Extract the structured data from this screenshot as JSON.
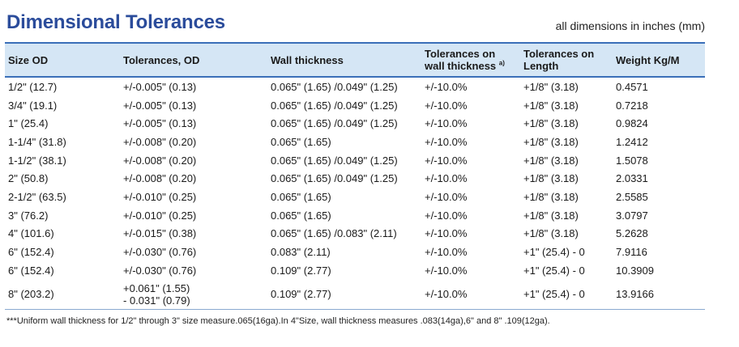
{
  "title": "Dimensional Tolerances",
  "units_note": "all dimensions in inches (mm)",
  "columns": {
    "size_od": "Size OD",
    "tol_od": "Tolerances, OD",
    "wall": "Wall thickness",
    "tol_wall_line1": "Tolerances on",
    "tol_wall_line2": "wall thickness",
    "tol_wall_sup": "a)",
    "tol_len_line1": "Tolerances on",
    "tol_len_line2": "Length",
    "weight": "Weight Kg/M"
  },
  "rows": [
    {
      "size": "1/2\" (12.7)",
      "tol_od": "+/-0.005\" (0.13)",
      "wall": "0.065\" (1.65) /0.049\" (1.25)",
      "tol_wall": "+/-10.0%",
      "tol_len": "+1/8\" (3.18)",
      "weight": "0.4571"
    },
    {
      "size": "3/4\" (19.1)",
      "tol_od": "+/-0.005\" (0.13)",
      "wall": "0.065\" (1.65) /0.049\" (1.25)",
      "tol_wall": "+/-10.0%",
      "tol_len": "+1/8\" (3.18)",
      "weight": "0.7218"
    },
    {
      "size": "1\" (25.4)",
      "tol_od": "+/-0.005\" (0.13)",
      "wall": "0.065\" (1.65) /0.049\" (1.25)",
      "tol_wall": "+/-10.0%",
      "tol_len": "+1/8\" (3.18)",
      "weight": "0.9824"
    },
    {
      "size": "1-1/4\" (31.8)",
      "tol_od": "+/-0.008\" (0.20)",
      "wall": "0.065\" (1.65)",
      "tol_wall": "+/-10.0%",
      "tol_len": "+1/8\" (3.18)",
      "weight": "1.2412"
    },
    {
      "size": "1-1/2\" (38.1)",
      "tol_od": "+/-0.008\" (0.20)",
      "wall": "0.065\" (1.65) /0.049\" (1.25)",
      "tol_wall": "+/-10.0%",
      "tol_len": "+1/8\" (3.18)",
      "weight": "1.5078"
    },
    {
      "size": "2\" (50.8)",
      "tol_od": "+/-0.008\" (0.20)",
      "wall": "0.065\" (1.65) /0.049\" (1.25)",
      "tol_wall": "+/-10.0%",
      "tol_len": "+1/8\" (3.18)",
      "weight": "2.0331"
    },
    {
      "size": "2-1/2\" (63.5)",
      "tol_od": "+/-0.010\" (0.25)",
      "wall": "0.065\" (1.65)",
      "tol_wall": "+/-10.0%",
      "tol_len": "+1/8\" (3.18)",
      "weight": "2.5585"
    },
    {
      "size": "3\" (76.2)",
      "tol_od": "+/-0.010\" (0.25)",
      "wall": "0.065\" (1.65)",
      "tol_wall": "+/-10.0%",
      "tol_len": "+1/8\" (3.18)",
      "weight": "3.0797"
    },
    {
      "size": "4\" (101.6)",
      "tol_od": "+/-0.015\" (0.38)",
      "wall": "0.065\" (1.65) /0.083\" (2.11)",
      "tol_wall": "+/-10.0%",
      "tol_len": "+1/8\" (3.18)",
      "weight": "5.2628"
    },
    {
      "size": "6\" (152.4)",
      "tol_od": "+/-0.030\" (0.76)",
      "wall": "0.083\" (2.11)",
      "tol_wall": "+/-10.0%",
      "tol_len": "+1\" (25.4) - 0",
      "weight": "7.9116"
    },
    {
      "size": "6\" (152.4)",
      "tol_od": "+/-0.030\" (0.76)",
      "wall": "0.109\" (2.77)",
      "tol_wall": "+/-10.0%",
      "tol_len": "+1\" (25.4) - 0",
      "weight": "10.3909"
    }
  ],
  "last_row": {
    "size": "8\" (203.2)",
    "tol_od_line1": "+0.061\" (1.55)",
    "tol_od_line2": "- 0.031\" (0.79)",
    "wall": "0.109\" (2.77)",
    "tol_wall": "+/-10.0%",
    "tol_len": "+1\" (25.4) - 0",
    "weight": "13.9166"
  },
  "footnote": "***Uniform wall thickness for 1/2\" through 3\" size measure.065(16ga).In 4\"Size, wall thickness measures .083(14ga),6\" and 8\" .109(12ga)."
}
